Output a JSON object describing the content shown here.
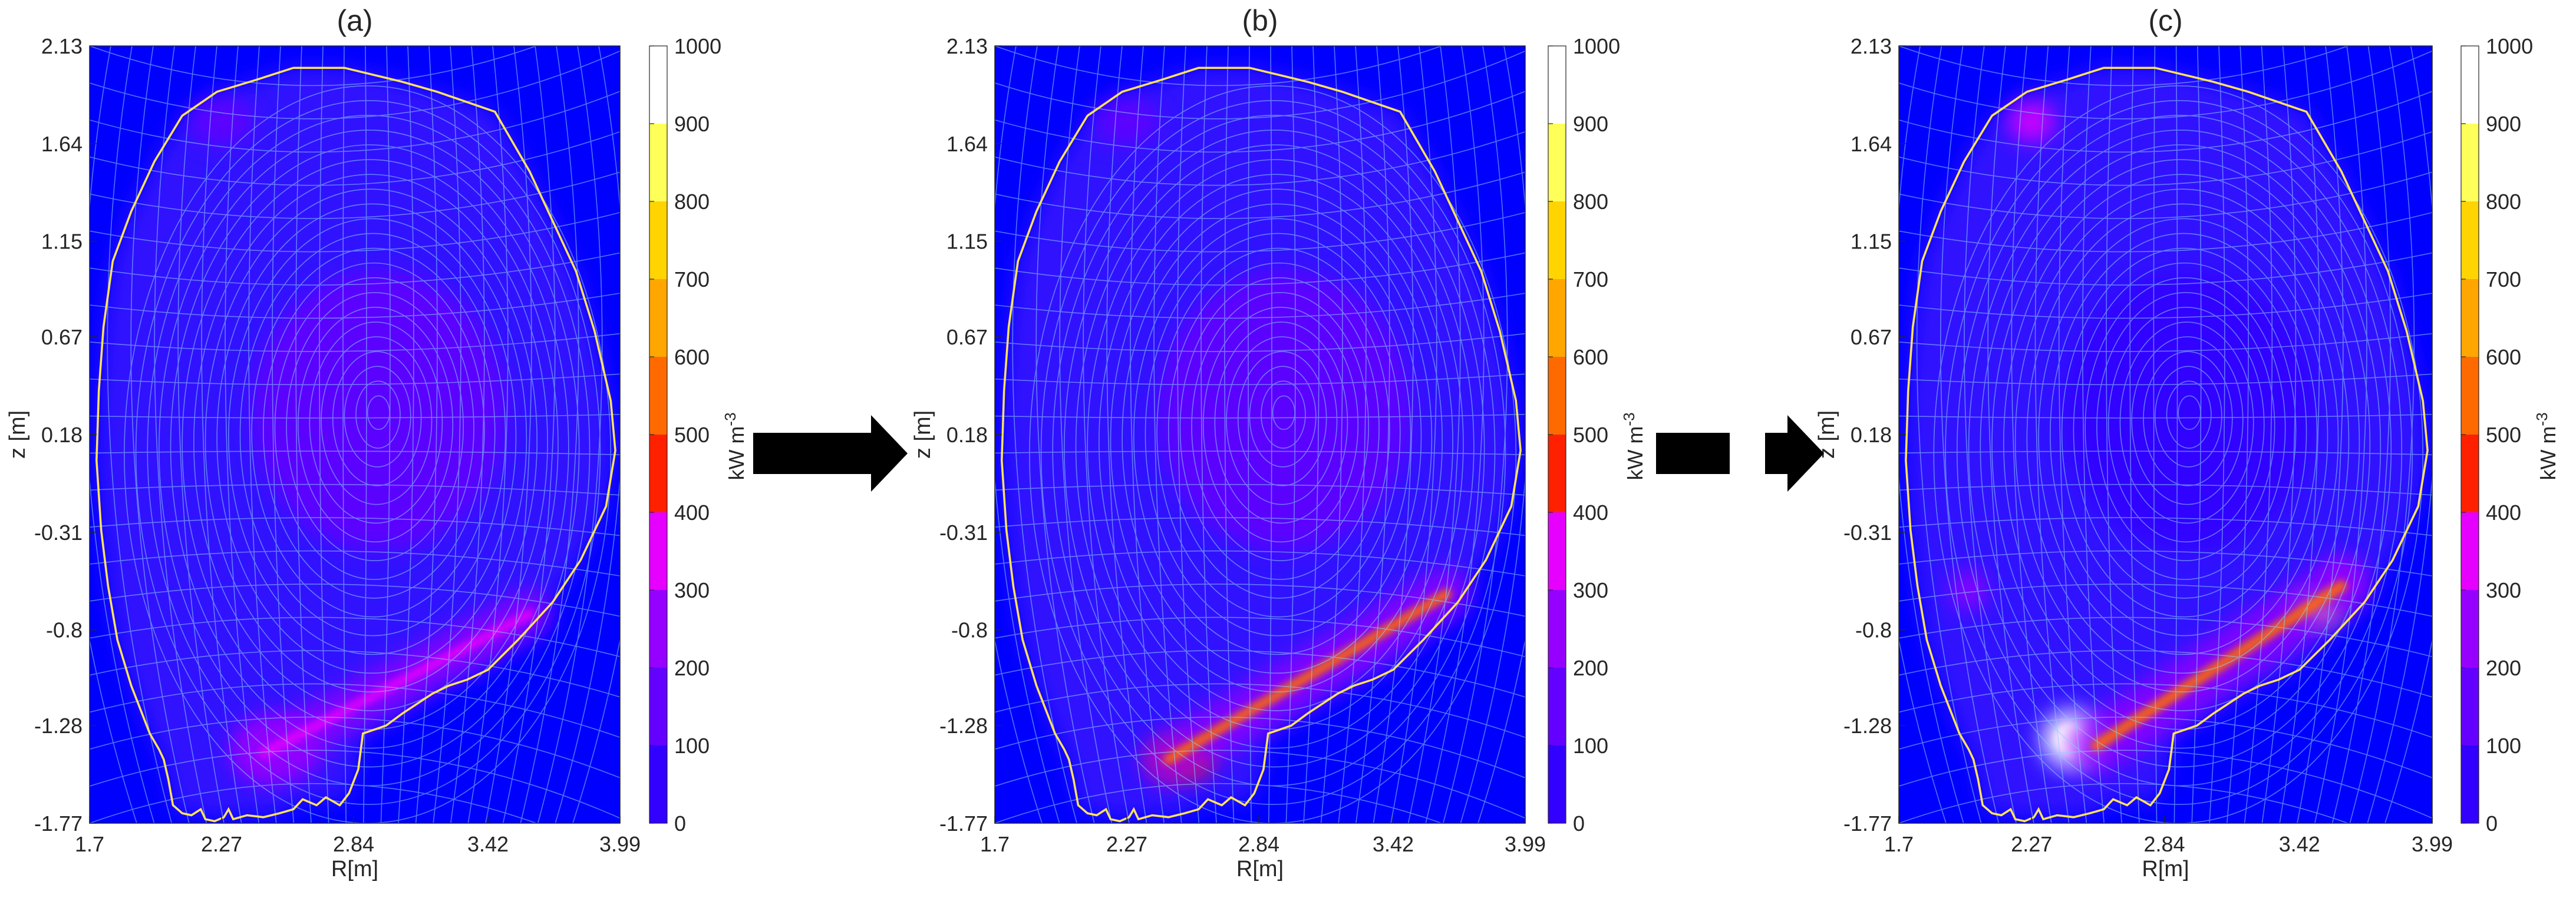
{
  "colorbar": {
    "unit": "kW m",
    "unit_exp": "-3",
    "ticks": [
      "0",
      "100",
      "200",
      "300",
      "400",
      "500",
      "600",
      "700",
      "800",
      "900",
      "1000"
    ],
    "colors": [
      "#0000ff",
      "#3200ff",
      "#6400ff",
      "#9600ff",
      "#e600ff",
      "#ff2000",
      "#ff6a00",
      "#ffa600",
      "#ffd400",
      "#ffff5a",
      "#ffffff"
    ]
  },
  "colors": {
    "background": "#0000ff",
    "separatrix": "#ffe45a",
    "field_lines": "#8ccfff"
  },
  "chart_data": [
    {
      "type": "heatmap",
      "title": "(a)",
      "xlabel": "R[m]",
      "ylabel": "z [m]",
      "xticks": [
        "1.7",
        "2.27",
        "2.84",
        "3.42",
        "3.99"
      ],
      "yticks": [
        "2.13",
        "1.64",
        "1.15",
        "0.67",
        "0.18",
        "-0.31",
        "-0.8",
        "-1.28",
        "-1.77"
      ],
      "xlim": [
        1.7,
        3.99
      ],
      "ylim": [
        -1.77,
        2.13
      ],
      "clim": [
        0,
        1000
      ],
      "colorbar_label": "kW m-3",
      "hotspots": [
        {
          "r": 2.27,
          "z": 1.75,
          "rr": 0.14,
          "rz": 0.12,
          "value": 180
        },
        {
          "r": 2.95,
          "z": 0.3,
          "rr": 0.55,
          "rz": 0.7,
          "value": 170
        },
        {
          "r": 2.5,
          "z": -1.4,
          "rr": 0.2,
          "rz": 0.18,
          "value": 330
        }
      ],
      "beams": [
        {
          "r1": 2.45,
          "z1": -1.42,
          "r2": 3.6,
          "z2": -0.72,
          "width": 0.09,
          "value": 280,
          "core_value": 420
        }
      ]
    },
    {
      "type": "heatmap",
      "title": "(b)",
      "xlabel": "R[m]",
      "ylabel": "z [m]",
      "xticks": [
        "1.7",
        "2.27",
        "2.84",
        "3.42",
        "3.99"
      ],
      "yticks": [
        "2.13",
        "1.64",
        "1.15",
        "0.67",
        "0.18",
        "-0.31",
        "-0.8",
        "-1.28",
        "-1.77"
      ],
      "xlim": [
        1.7,
        3.99
      ],
      "ylim": [
        -1.77,
        2.13
      ],
      "clim": [
        0,
        1000
      ],
      "colorbar_label": "kW m-3",
      "hotspots": [
        {
          "r": 2.27,
          "z": 1.75,
          "rr": 0.14,
          "rz": 0.12,
          "value": 200
        },
        {
          "r": 2.95,
          "z": 0.3,
          "rr": 0.55,
          "rz": 0.7,
          "value": 180
        },
        {
          "r": 2.5,
          "z": -1.45,
          "rr": 0.14,
          "rz": 0.1,
          "value": 470
        }
      ],
      "beams": [
        {
          "r1": 2.45,
          "z1": -1.45,
          "r2": 3.65,
          "z2": -0.62,
          "width": 0.1,
          "value": 320,
          "core_value": 560
        }
      ]
    },
    {
      "type": "heatmap",
      "title": "(c)",
      "xlabel": "R[m]",
      "ylabel": "z [m]",
      "xticks": [
        "1.7",
        "2.27",
        "2.84",
        "3.42",
        "3.99"
      ],
      "yticks": [
        "2.13",
        "1.64",
        "1.15",
        "0.67",
        "0.18",
        "-0.31",
        "-0.8",
        "-1.28",
        "-1.77"
      ],
      "xlim": [
        1.7,
        3.99
      ],
      "ylim": [
        -1.77,
        2.13
      ],
      "clim": [
        0,
        1000
      ],
      "colorbar_label": "kW m-3",
      "hotspots": [
        {
          "r": 2.27,
          "z": 1.75,
          "rr": 0.1,
          "rz": 0.1,
          "value": 380
        },
        {
          "r": 2.95,
          "z": 0.3,
          "rr": 0.55,
          "rz": 0.7,
          "value": 120
        },
        {
          "r": 2.0,
          "z": -0.6,
          "rr": 0.08,
          "rz": 0.1,
          "value": 260
        },
        {
          "r": 3.6,
          "z": -0.55,
          "rr": 0.08,
          "rz": 0.1,
          "value": 320
        },
        {
          "r": 2.44,
          "z": -1.35,
          "rr": 0.13,
          "rz": 0.15,
          "value": 950
        },
        {
          "r": 3.5,
          "z": -0.7,
          "rr": 0.1,
          "rz": 0.07,
          "value": 880
        }
      ],
      "beams": [
        {
          "r1": 2.55,
          "z1": -1.38,
          "r2": 3.6,
          "z2": -0.58,
          "width": 0.11,
          "value": 330,
          "core_value": 620
        }
      ]
    }
  ]
}
